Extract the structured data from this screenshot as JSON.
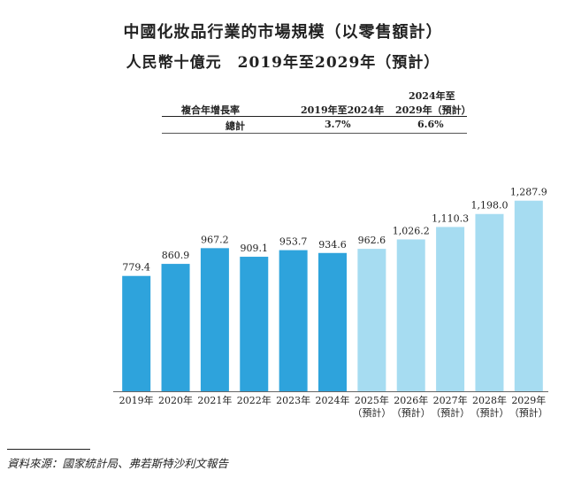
{
  "title": "中國化妝品行業的市場規模（以零售額計）",
  "subtitle": "人民幣十億元　2019年至2029年（預計）",
  "cagr_table": {
    "header_label": "複合年增長率",
    "col1_header": "2019年至2024年",
    "col2_header_line1": "2024年至",
    "col2_header_line2": "2029年（預計）",
    "row_label": "總計",
    "col1_value": "3.7%",
    "col2_value": "6.6%"
  },
  "source": "資料來源：國家統計局、弗若斯特沙利文報告",
  "colors": {
    "actual": "#2ea3dc",
    "forecast": "#a6dcf1"
  },
  "chart_data": {
    "type": "bar",
    "categories": [
      "2019年",
      "2020年",
      "2021年",
      "2022年",
      "2023年",
      "2024年",
      "2025年",
      "2026年",
      "2027年",
      "2028年",
      "2029年"
    ],
    "category_sublabels": [
      "",
      "",
      "",
      "",
      "",
      "",
      "（預計）",
      "（預計）",
      "（預計）",
      "（預計）",
      "（預計）"
    ],
    "values": [
      779.4,
      860.9,
      967.2,
      909.1,
      953.7,
      934.6,
      962.6,
      1026.2,
      1110.3,
      1198.0,
      1287.9
    ],
    "value_labels": [
      "779.4",
      "860.9",
      "967.2",
      "909.1",
      "953.7",
      "934.6",
      "962.6",
      "1,026.2",
      "1,110.3",
      "1,198.0",
      "1,287.9"
    ],
    "forecast": [
      false,
      false,
      false,
      false,
      false,
      false,
      true,
      true,
      true,
      true,
      true
    ],
    "ylim": [
      0,
      1340
    ],
    "grid": false,
    "legend": "none"
  }
}
